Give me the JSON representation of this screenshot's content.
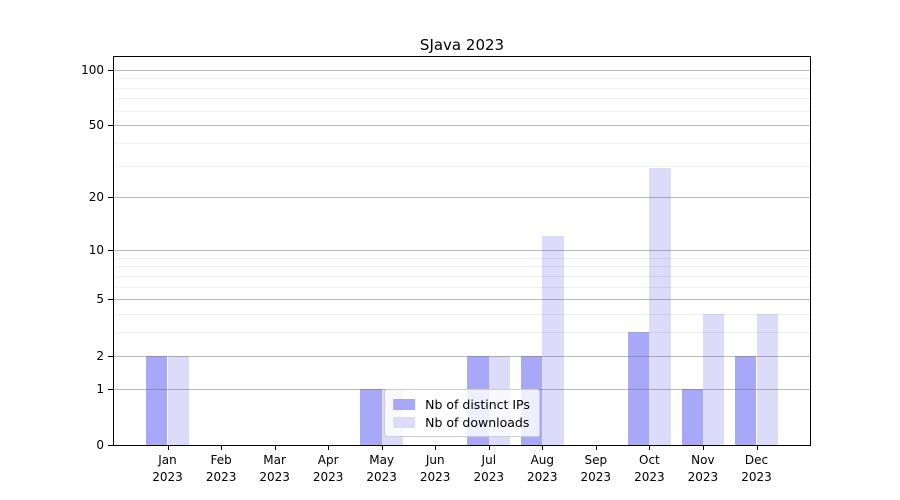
{
  "chart_data": {
    "type": "bar",
    "title": "SJava 2023",
    "categories": [
      {
        "month": "Jan",
        "year": "2023"
      },
      {
        "month": "Feb",
        "year": "2023"
      },
      {
        "month": "Mar",
        "year": "2023"
      },
      {
        "month": "Apr",
        "year": "2023"
      },
      {
        "month": "May",
        "year": "2023"
      },
      {
        "month": "Jun",
        "year": "2023"
      },
      {
        "month": "Jul",
        "year": "2023"
      },
      {
        "month": "Aug",
        "year": "2023"
      },
      {
        "month": "Sep",
        "year": "2023"
      },
      {
        "month": "Oct",
        "year": "2023"
      },
      {
        "month": "Nov",
        "year": "2023"
      },
      {
        "month": "Dec",
        "year": "2023"
      }
    ],
    "series": [
      {
        "name": "Nb of distinct IPs",
        "key": "distinct-ips",
        "color": "#a8a8f8",
        "values": [
          2,
          0,
          0,
          0,
          1,
          0,
          2,
          2,
          0,
          3,
          1,
          2
        ]
      },
      {
        "name": "Nb of downloads",
        "key": "downloads",
        "color": "#dcdcfa",
        "values": [
          2,
          0,
          0,
          0,
          1,
          0,
          2,
          12,
          0,
          29,
          4,
          4
        ]
      }
    ],
    "yscale": "log1p",
    "ylim": [
      0,
      117
    ],
    "yticks": [
      0,
      1,
      2,
      5,
      10,
      20,
      50,
      100
    ],
    "minor_yticks": [
      3,
      4,
      6,
      7,
      8,
      9,
      30,
      40,
      60,
      70,
      80,
      90
    ],
    "grid": "horizontal",
    "legend_position": "lower center"
  }
}
